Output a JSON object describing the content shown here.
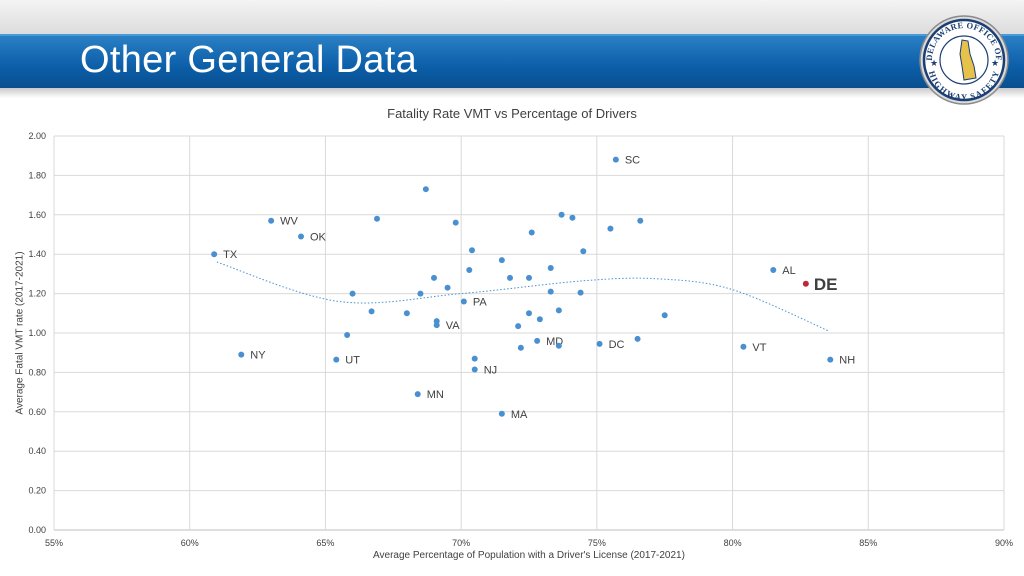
{
  "slide": {
    "title": "Other General Data",
    "logo": {
      "icon": "delaware-office-of-highway-safety-seal",
      "text_top": "DELAWARE OFFICE OF",
      "text_bottom": "HIGHWAY SAFETY"
    }
  },
  "colors": {
    "band": "#0b5ea8",
    "point": "#4a90d0",
    "highlight": "#c0263a",
    "trend": "#4a90d0",
    "grid": "#d9d9d9"
  },
  "chart_data": {
    "type": "scatter",
    "title": "Fatality Rate VMT vs Percentage of Drivers",
    "xlabel": "Average Percentage of Population with a Driver's License (2017-2021)",
    "ylabel": "Average Fatal VMT rate (2017-2021)",
    "xlim": [
      0.55,
      0.9
    ],
    "ylim": [
      0,
      2.0
    ],
    "x_ticks": [
      0.55,
      0.6,
      0.65,
      0.7,
      0.75,
      0.8,
      0.85,
      0.9
    ],
    "x_tick_labels": [
      "55%",
      "60%",
      "65%",
      "70%",
      "75%",
      "80%",
      "85%",
      "90%"
    ],
    "y_ticks": [
      0,
      0.2,
      0.4,
      0.6,
      0.8,
      1.0,
      1.2,
      1.4,
      1.6,
      1.8,
      2.0
    ],
    "y_tick_labels": [
      "0.00",
      "0.20",
      "0.40",
      "0.60",
      "0.80",
      "1.00",
      "1.20",
      "1.40",
      "1.60",
      "1.80",
      "2.00"
    ],
    "grid": true,
    "legend": "none",
    "trendline": {
      "type": "polynomial",
      "x": [
        0.61,
        0.655,
        0.7,
        0.745,
        0.7725,
        0.8,
        0.8355
      ],
      "y": [
        1.36,
        1.16,
        1.2,
        1.265,
        1.275,
        1.22,
        1.01
      ]
    },
    "points": [
      {
        "x": 0.757,
        "y": 1.88,
        "label": "SC"
      },
      {
        "x": 0.63,
        "y": 1.57,
        "label": "WV"
      },
      {
        "x": 0.641,
        "y": 1.49,
        "label": "OK"
      },
      {
        "x": 0.609,
        "y": 1.4,
        "label": "TX"
      },
      {
        "x": 0.815,
        "y": 1.32,
        "label": "AL"
      },
      {
        "x": 0.827,
        "y": 1.25,
        "label": "DE",
        "highlight": true
      },
      {
        "x": 0.701,
        "y": 1.16,
        "label": "PA"
      },
      {
        "x": 0.691,
        "y": 1.04,
        "label": "VA"
      },
      {
        "x": 0.728,
        "y": 0.96,
        "label": "MD"
      },
      {
        "x": 0.751,
        "y": 0.945,
        "label": "DC"
      },
      {
        "x": 0.804,
        "y": 0.93,
        "label": "VT"
      },
      {
        "x": 0.619,
        "y": 0.89,
        "label": "NY"
      },
      {
        "x": 0.654,
        "y": 0.865,
        "label": "UT"
      },
      {
        "x": 0.836,
        "y": 0.865,
        "label": "NH"
      },
      {
        "x": 0.705,
        "y": 0.815,
        "label": "NJ"
      },
      {
        "x": 0.684,
        "y": 0.69,
        "label": "MN"
      },
      {
        "x": 0.715,
        "y": 0.59,
        "label": "MA"
      },
      {
        "x": 0.687,
        "y": 1.73
      },
      {
        "x": 0.669,
        "y": 1.58
      },
      {
        "x": 0.698,
        "y": 1.56
      },
      {
        "x": 0.737,
        "y": 1.6
      },
      {
        "x": 0.741,
        "y": 1.585
      },
      {
        "x": 0.766,
        "y": 1.57
      },
      {
        "x": 0.755,
        "y": 1.53
      },
      {
        "x": 0.726,
        "y": 1.51
      },
      {
        "x": 0.704,
        "y": 1.42
      },
      {
        "x": 0.745,
        "y": 1.415
      },
      {
        "x": 0.715,
        "y": 1.37
      },
      {
        "x": 0.703,
        "y": 1.32
      },
      {
        "x": 0.733,
        "y": 1.33
      },
      {
        "x": 0.69,
        "y": 1.28
      },
      {
        "x": 0.718,
        "y": 1.28
      },
      {
        "x": 0.725,
        "y": 1.28
      },
      {
        "x": 0.695,
        "y": 1.23
      },
      {
        "x": 0.66,
        "y": 1.2
      },
      {
        "x": 0.685,
        "y": 1.2
      },
      {
        "x": 0.733,
        "y": 1.21
      },
      {
        "x": 0.744,
        "y": 1.205
      },
      {
        "x": 0.667,
        "y": 1.11
      },
      {
        "x": 0.68,
        "y": 1.1
      },
      {
        "x": 0.725,
        "y": 1.1
      },
      {
        "x": 0.736,
        "y": 1.115
      },
      {
        "x": 0.775,
        "y": 1.09
      },
      {
        "x": 0.729,
        "y": 1.07
      },
      {
        "x": 0.691,
        "y": 1.06
      },
      {
        "x": 0.721,
        "y": 1.035
      },
      {
        "x": 0.658,
        "y": 0.99
      },
      {
        "x": 0.722,
        "y": 0.925
      },
      {
        "x": 0.736,
        "y": 0.935
      },
      {
        "x": 0.765,
        "y": 0.97
      },
      {
        "x": 0.705,
        "y": 0.87
      }
    ]
  }
}
